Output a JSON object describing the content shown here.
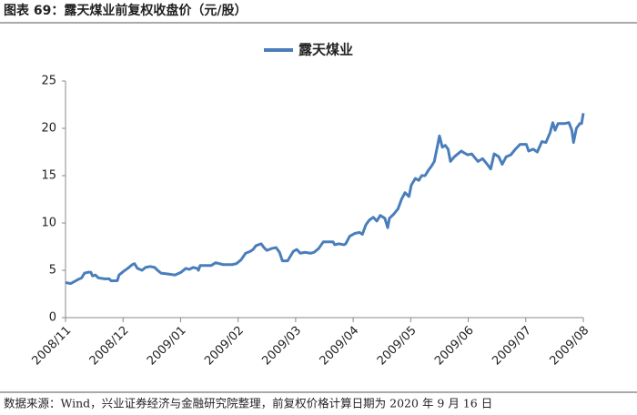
{
  "chart_data": {
    "type": "line",
    "title": "图表 69：露天煤业前复权收盘价（元/股）",
    "source": "数据来源：Wind，兴业证券经济与金融研究院整理，前复权价格计算日期为 2020 年 9 月 16 日",
    "xlim": [
      0,
      9
    ],
    "xticks": [
      {
        "value": 0,
        "label": "2008/11"
      },
      {
        "value": 1,
        "label": "2008/12"
      },
      {
        "value": 2,
        "label": "2009/01"
      },
      {
        "value": 3,
        "label": "2009/02"
      },
      {
        "value": 4,
        "label": "2009/03"
      },
      {
        "value": 5,
        "label": "2009/04"
      },
      {
        "value": 6,
        "label": "2009/05"
      },
      {
        "value": 7,
        "label": "2009/06"
      },
      {
        "value": 8,
        "label": "2009/07"
      },
      {
        "value": 9,
        "label": "2009/08"
      }
    ],
    "ylim": [
      0,
      25
    ],
    "yticks": [
      0,
      5,
      10,
      15,
      20,
      25
    ],
    "grid": false,
    "legend": "top",
    "x": [
      0,
      0.09,
      0.21,
      0.28,
      0.33,
      0.4,
      0.44,
      0.47,
      0.52,
      0.57,
      0.68,
      0.76,
      0.79,
      0.9,
      0.93,
      1.01,
      1.08,
      1.16,
      1.2,
      1.25,
      1.33,
      1.39,
      1.47,
      1.55,
      1.6,
      1.66,
      1.79,
      1.9,
      2.01,
      2.09,
      2.15,
      2.22,
      2.29,
      2.31,
      2.34,
      2.44,
      2.53,
      2.61,
      2.74,
      2.9,
      2.97,
      3.05,
      3.13,
      3.21,
      3.26,
      3.31,
      3.4,
      3.45,
      3.5,
      3.58,
      3.66,
      3.72,
      3.77,
      3.86,
      3.91,
      3.96,
      4.02,
      4.08,
      4.16,
      4.26,
      4.32,
      4.4,
      4.48,
      4.59,
      4.65,
      4.68,
      4.75,
      4.84,
      4.87,
      4.94,
      5.03,
      5.11,
      5.16,
      5.22,
      5.28,
      5.35,
      5.41,
      5.47,
      5.55,
      5.6,
      5.63,
      5.7,
      5.78,
      5.84,
      5.9,
      5.97,
      6.01,
      6.08,
      6.14,
      6.19,
      6.25,
      6.3,
      6.36,
      6.41,
      6.46,
      6.5,
      6.55,
      6.6,
      6.65,
      6.69,
      6.76,
      6.82,
      6.88,
      6.93,
      6.99,
      7.06,
      7.1,
      7.17,
      7.25,
      7.33,
      7.39,
      7.45,
      7.53,
      7.59,
      7.66,
      7.74,
      7.82,
      7.9,
      8.01,
      8.05,
      8.13,
      8.2,
      8.28,
      8.35,
      8.42,
      8.47,
      8.51,
      8.56,
      8.67,
      8.75,
      8.8,
      8.83,
      8.88,
      8.94,
      8.97,
      9.0
    ],
    "series": [
      {
        "name": "露天煤业",
        "color": "#4a7ebb",
        "values": [
          3.7,
          3.6,
          4.0,
          4.2,
          4.7,
          4.8,
          4.8,
          4.4,
          4.5,
          4.2,
          4.1,
          4.1,
          3.9,
          3.9,
          4.5,
          4.9,
          5.2,
          5.6,
          5.7,
          5.2,
          5.0,
          5.3,
          5.4,
          5.3,
          5.0,
          4.7,
          4.6,
          4.5,
          4.8,
          5.2,
          5.1,
          5.3,
          5.2,
          5.0,
          5.5,
          5.5,
          5.5,
          5.8,
          5.6,
          5.6,
          5.7,
          6.1,
          6.8,
          7.0,
          7.2,
          7.6,
          7.8,
          7.4,
          7.1,
          7.3,
          7.4,
          6.9,
          6.0,
          6.0,
          6.5,
          7.0,
          7.2,
          6.8,
          6.9,
          6.8,
          6.9,
          7.3,
          8.0,
          8.0,
          8.0,
          7.7,
          7.8,
          7.7,
          7.8,
          8.6,
          8.9,
          9.0,
          8.8,
          9.8,
          10.3,
          10.6,
          10.2,
          10.8,
          10.5,
          9.5,
          10.5,
          10.9,
          11.5,
          12.5,
          13.2,
          12.8,
          14.0,
          14.7,
          14.5,
          15.0,
          15.0,
          15.5,
          16.0,
          16.5,
          18.0,
          19.2,
          18.0,
          18.2,
          17.8,
          16.5,
          17.0,
          17.3,
          17.6,
          17.4,
          17.2,
          17.3,
          17.0,
          16.5,
          16.8,
          16.2,
          15.7,
          17.3,
          17.0,
          16.2,
          17.0,
          17.2,
          17.8,
          18.3,
          18.3,
          17.6,
          17.8,
          17.5,
          18.6,
          18.5,
          19.5,
          20.6,
          19.8,
          20.5,
          20.5,
          20.6,
          19.8,
          18.5,
          20.0,
          20.5,
          20.5,
          21.6
        ]
      }
    ]
  }
}
